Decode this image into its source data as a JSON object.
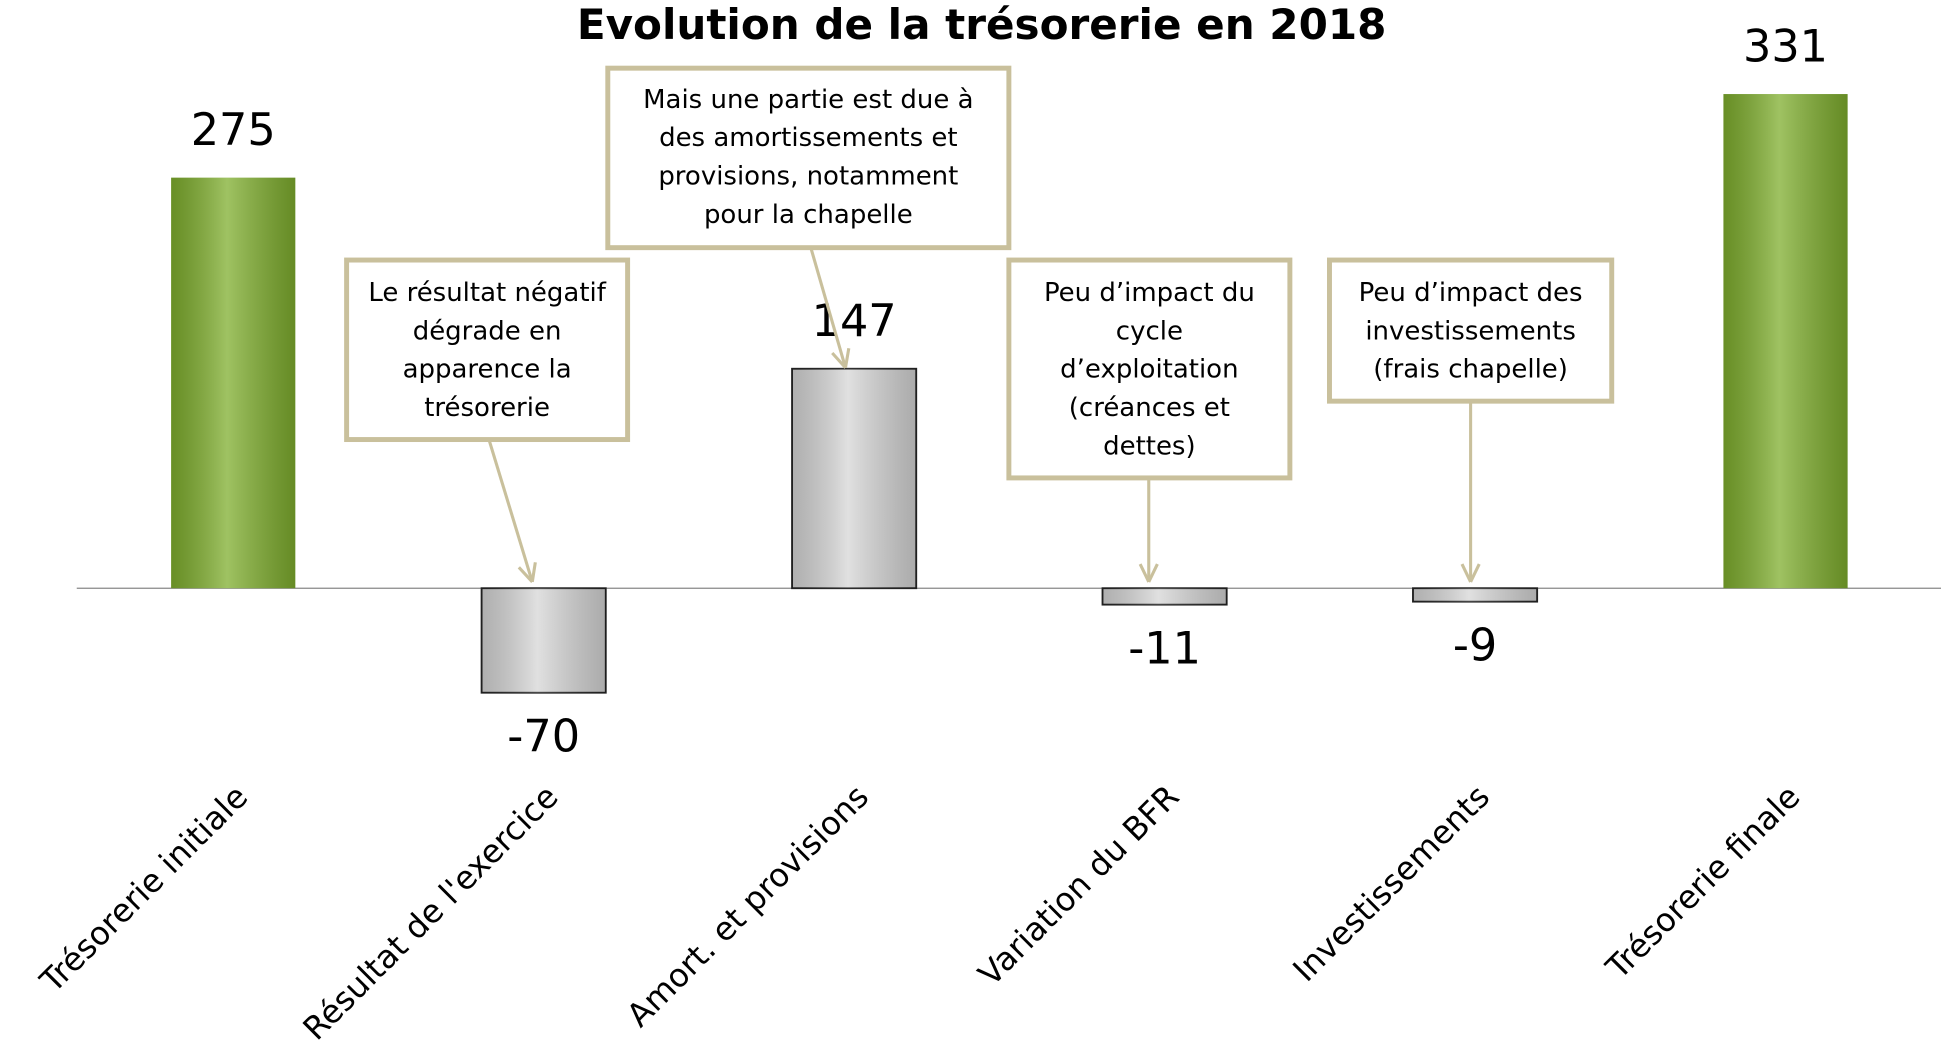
{
  "chart_data": {
    "type": "bar",
    "title": "Evolution de la trésorerie en 2018",
    "categories": [
      "Trésorerie initiale",
      "Résultat de l'exercice",
      "Amort. et provisions",
      "Variation du BFR",
      "Investissements",
      "Trésorerie finale"
    ],
    "values": [
      275,
      -70,
      147,
      -11,
      -9,
      331
    ],
    "colors": [
      "#7fae2e",
      "#d6d6d6",
      "#d6d6d6",
      "#d6d6d6",
      "#d6d6d6",
      "#7fae2e"
    ],
    "ylim": [
      -150,
      350
    ],
    "annotations": [
      {
        "text": [
          "Le résultat négatif",
          "dégrade en",
          "apparence  la",
          "trésorerie"
        ]
      },
      {
        "text": [
          "Mais une partie est due à",
          "des  amortissements et",
          "provisions, notamment",
          "pour la chapelle"
        ]
      },
      {
        "text": [
          "Peu d’impact du",
          "cycle",
          "d’exploitation",
          "(créances et",
          "dettes)"
        ]
      },
      {
        "text": [
          "Peu d’impact des",
          "investissements",
          "(frais chapelle)"
        ]
      }
    ]
  }
}
